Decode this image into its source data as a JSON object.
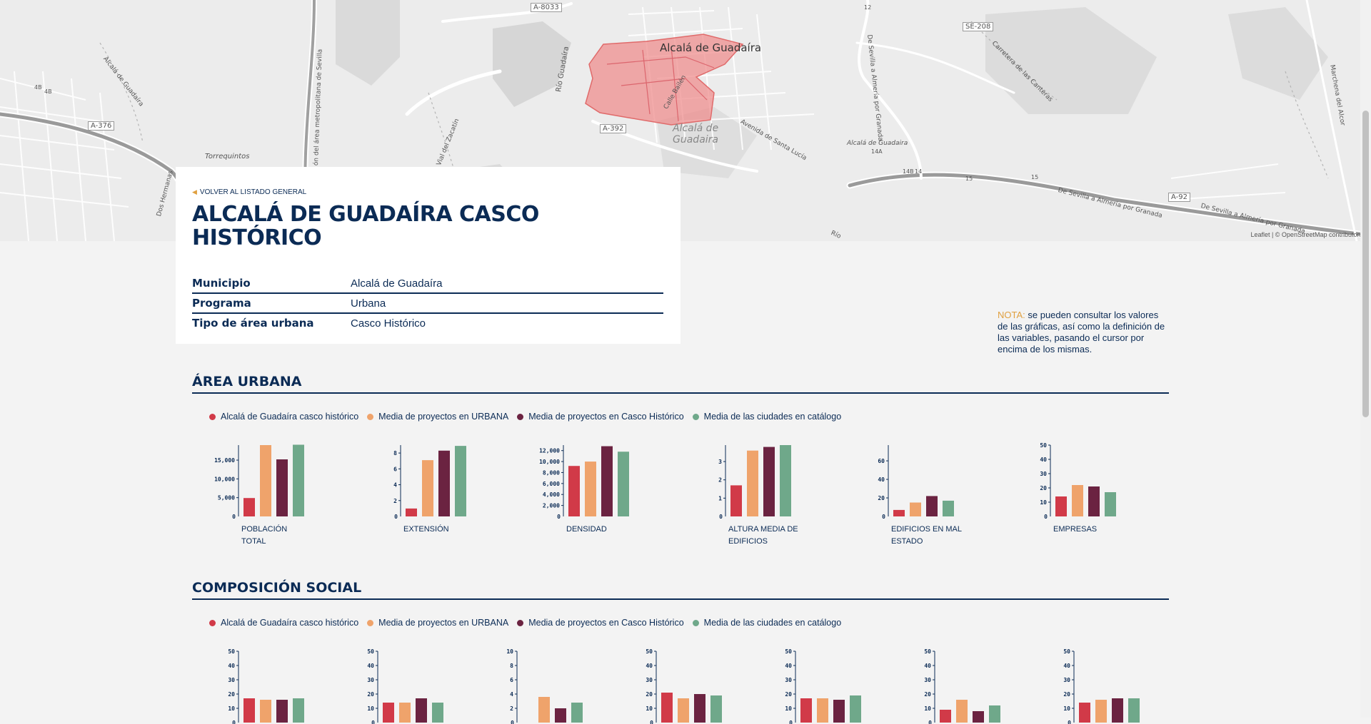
{
  "map": {
    "labels": {
      "alcala_top": "Alcalá de Guadaíra",
      "alcala_center": "Alcalá de\nGuadaira",
      "a8033": "A-8033",
      "a376": "A-376",
      "a392": "A-392",
      "a92": "A-92",
      "se208": "SE-208",
      "torrequintos": "Torrequintos",
      "rio_guadaira": "Río Guadaíra",
      "calle_bailen": "Calle Bailén",
      "avenida_santa_lucia": "Avenida de Santa Lucía",
      "alcala_exit": "Alcalá de Guadaira",
      "exit_14a": "14A",
      "exit_14b": "14B",
      "exit_14": "14",
      "exit_15a": "15",
      "exit_15b": "15",
      "exit_4a": "4B",
      "exit_4b": "4B",
      "de_sevilla_granada_1": "De Sevilla a Almería por Granada",
      "de_sevilla_granada_2": "De Sevilla a Almería por Granada",
      "de_sevilla_granada_v": "De Sevilla a Almería por Granada",
      "carretera_canteras": "Carretera de las Canteras",
      "marchena": "Marchena del Alcor",
      "vial_zacatin": "Vial del Zacatín",
      "dos_hermanas": "Dos Hermanas",
      "alcala_de_guadaira_road": "Alcalá de Guadaíra",
      "ronda_metropolitana": "ón del área metropolitana de Sevilla",
      "rio": "Río",
      "se_a": "A",
      "road_12": "12"
    },
    "attribution": "Leaflet | © OpenStreetMap contributors",
    "highlight_color": "#ee8a8a"
  },
  "card": {
    "back_label": "VOLVER AL LISTADO GENERAL",
    "title": "ALCALÁ DE GUADAÍRA CASCO HISTÓRICO",
    "rows": [
      {
        "key": "Municipio",
        "value": "Alcalá de Guadaíra"
      },
      {
        "key": "Programa",
        "value": "Urbana"
      },
      {
        "key": "Tipo de área urbana",
        "value": "Casco Histórico"
      }
    ]
  },
  "note": {
    "label": "NOTA:",
    "text": " se pueden consultar los valores de las gráficas, así como la definición de las variables, pasando el cursor por encima de los mismas."
  },
  "colors": {
    "series_1": "#d13a48",
    "series_2": "#efa36b",
    "series_3": "#6b2341",
    "series_4": "#6fa88a",
    "navy": "#0b2b55",
    "accent": "#e0a040"
  },
  "sections": [
    {
      "title": "ÁREA URBANA",
      "legend": [
        "Alcalá de Guadaíra casco histórico",
        "Media de proyectos en URBANA",
        "Media de proyectos en Casco Histórico",
        "Media de las ciudades en catálogo"
      ]
    },
    {
      "title": "COMPOSICIÓN SOCIAL",
      "legend": [
        "Alcalá de Guadaíra casco histórico",
        "Media de proyectos en URBANA",
        "Media de proyectos en Casco Histórico",
        "Media de las ciudades en catálogo"
      ]
    }
  ],
  "chart_data": [
    {
      "type": "bar",
      "title": "POBLACIÓN TOTAL",
      "ylim": [
        0,
        19000
      ],
      "yticks": [
        "5,000",
        "10,000",
        "15,000"
      ],
      "tick_values": [
        5000,
        10000,
        15000
      ],
      "values": [
        4900,
        19000,
        15200,
        19100
      ]
    },
    {
      "type": "bar",
      "title": "EXTENSIÓN",
      "ylim": [
        0,
        9
      ],
      "yticks": [
        "2",
        "4",
        "6",
        "8"
      ],
      "tick_values": [
        2,
        4,
        6,
        8
      ],
      "values": [
        1,
        7.1,
        8.3,
        8.9
      ]
    },
    {
      "type": "bar",
      "title": "DENSIDAD",
      "ylim": [
        0,
        13000
      ],
      "yticks": [
        "2,000",
        "4,000",
        "6,000",
        "8,000",
        "10,000",
        "12,000"
      ],
      "tick_values": [
        2000,
        4000,
        6000,
        8000,
        10000,
        12000
      ],
      "values": [
        9200,
        10000,
        12800,
        11800
      ]
    },
    {
      "type": "bar",
      "title": "ALTURA MEDIA DE EDIFICIOS",
      "ylim": [
        0,
        3.9
      ],
      "yticks": [
        "1",
        "2",
        "3"
      ],
      "tick_values": [
        1,
        2,
        3
      ],
      "values": [
        1.7,
        3.6,
        3.8,
        3.9
      ]
    },
    {
      "type": "bar",
      "title": "EDIFICIOS EN MAL ESTADO",
      "ylim": [
        0,
        77
      ],
      "yticks": [
        "20",
        "40",
        "60"
      ],
      "tick_values": [
        20,
        40,
        60
      ],
      "values": [
        7,
        15,
        22,
        17
      ]
    },
    {
      "type": "bar",
      "title": "EMPRESAS",
      "ylim": [
        0,
        50
      ],
      "yticks": [
        "10",
        "20",
        "30",
        "40",
        "50"
      ],
      "tick_values": [
        10,
        20,
        30,
        40,
        50
      ],
      "values": [
        14,
        22,
        21,
        17
      ]
    },
    {
      "type": "bar",
      "title": "",
      "ylim": [
        0,
        50
      ],
      "yticks": [
        "10",
        "20",
        "30",
        "40",
        "50"
      ],
      "tick_values": [
        10,
        20,
        30,
        40,
        50
      ],
      "values": [
        17,
        16,
        16,
        17
      ]
    },
    {
      "type": "bar",
      "title": "",
      "ylim": [
        0,
        50
      ],
      "yticks": [
        "10",
        "20",
        "30",
        "40",
        "50"
      ],
      "tick_values": [
        10,
        20,
        30,
        40,
        50
      ],
      "values": [
        14,
        14,
        17,
        14
      ]
    },
    {
      "type": "bar",
      "title": "",
      "ylim": [
        0,
        10
      ],
      "yticks": [
        "2",
        "4",
        "6",
        "8",
        "10"
      ],
      "tick_values": [
        2,
        4,
        6,
        8,
        10
      ],
      "values": [
        0,
        3.6,
        2,
        2.8
      ]
    },
    {
      "type": "bar",
      "title": "",
      "ylim": [
        0,
        50
      ],
      "yticks": [
        "10",
        "20",
        "30",
        "40",
        "50"
      ],
      "tick_values": [
        10,
        20,
        30,
        40,
        50
      ],
      "values": [
        21,
        17,
        20,
        19
      ]
    },
    {
      "type": "bar",
      "title": "",
      "ylim": [
        0,
        50
      ],
      "yticks": [
        "10",
        "20",
        "30",
        "40",
        "50"
      ],
      "tick_values": [
        10,
        20,
        30,
        40,
        50
      ],
      "values": [
        17,
        17,
        16,
        19
      ]
    },
    {
      "type": "bar",
      "title": "",
      "ylim": [
        0,
        50
      ],
      "yticks": [
        "10",
        "20",
        "30",
        "40",
        "50"
      ],
      "tick_values": [
        10,
        20,
        30,
        40,
        50
      ],
      "values": [
        9,
        16,
        8,
        12
      ]
    },
    {
      "type": "bar",
      "title": "",
      "ylim": [
        0,
        50
      ],
      "yticks": [
        "10",
        "20",
        "30",
        "40",
        "50"
      ],
      "tick_values": [
        10,
        20,
        30,
        40,
        50
      ],
      "values": [
        14,
        16,
        17,
        17
      ]
    }
  ]
}
